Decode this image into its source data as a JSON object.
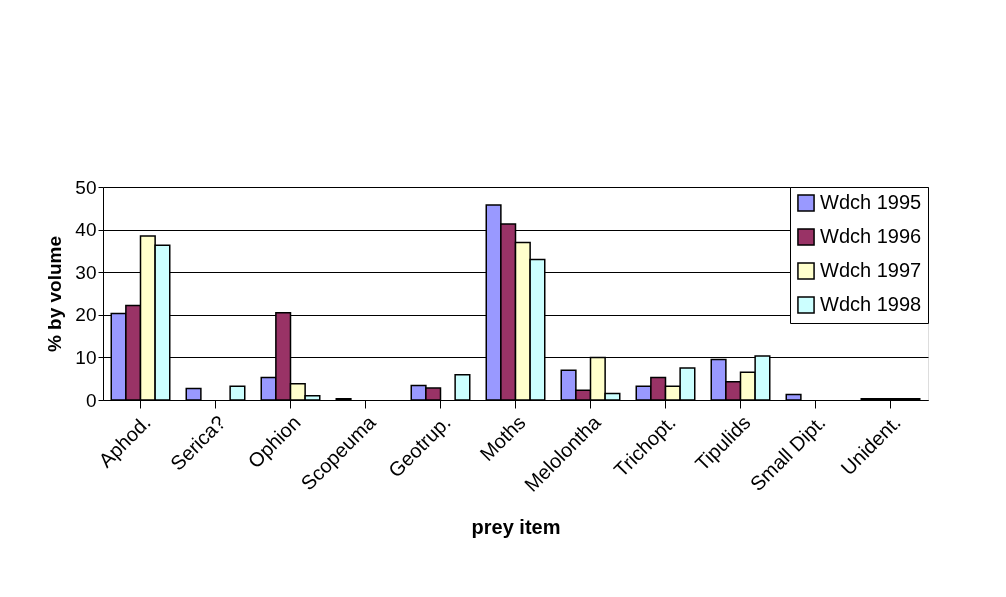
{
  "chart_data": {
    "type": "bar",
    "xlabel": "prey item",
    "ylabel": "% by volume",
    "categories": [
      "Aphod.",
      "Serica?",
      "Ophion",
      "Scopeuma",
      "Geotrup.",
      "Moths",
      "Melolontha",
      "Trichopt.",
      "Tipulids",
      "Small Dipt.",
      "Unident."
    ],
    "series": [
      {
        "name": "Wdch 1995",
        "color": "#9999ff",
        "values": [
          20.3,
          2.7,
          5.3,
          0.3,
          3.4,
          45.8,
          7.0,
          3.2,
          9.5,
          1.3,
          0.3
        ]
      },
      {
        "name": "Wdch 1996",
        "color": "#993366",
        "values": [
          22.2,
          0,
          20.5,
          0,
          2.8,
          41.3,
          2.3,
          5.3,
          4.3,
          0,
          0.3
        ]
      },
      {
        "name": "Wdch 1997",
        "color": "#ffffcc",
        "values": [
          38.5,
          0,
          3.8,
          0,
          0,
          37.0,
          10.0,
          3.2,
          6.5,
          0,
          0.3
        ]
      },
      {
        "name": "Wdch 1998",
        "color": "#ccffff",
        "values": [
          36.3,
          3.2,
          1.0,
          0,
          5.9,
          33.0,
          1.5,
          7.5,
          10.3,
          0,
          0.3
        ]
      }
    ],
    "ylim": [
      0,
      50
    ],
    "yticks": [
      0,
      10,
      20,
      30,
      40,
      50
    ],
    "grid": "y",
    "legend": "top right"
  }
}
